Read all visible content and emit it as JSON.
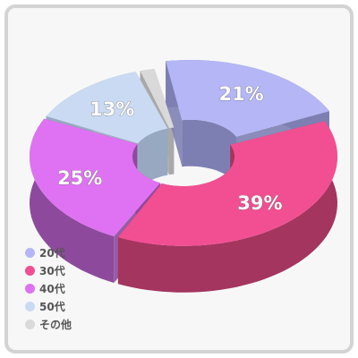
{
  "chart_data": {
    "type": "pie",
    "style": "3d-donut",
    "slices": [
      {
        "label": "20代",
        "value": 21,
        "value_label": "21%",
        "color": "#b4b6f6",
        "side": "#7d7fb2"
      },
      {
        "label": "30代",
        "value": 39,
        "value_label": "39%",
        "color": "#f24f92",
        "side": "#a3355f"
      },
      {
        "label": "40代",
        "value": 25,
        "value_label": "25%",
        "color": "#df72f2",
        "side": "#8d4a9c"
      },
      {
        "label": "50代",
        "value": 13,
        "value_label": "13%",
        "color": "#c9daf2",
        "side": "#97a8c0"
      },
      {
        "label": "その他",
        "value": 2,
        "value_label": "",
        "color": "#d9d9d9",
        "side": "#a8a8a8"
      }
    ],
    "legend_position": "bottom-left"
  }
}
